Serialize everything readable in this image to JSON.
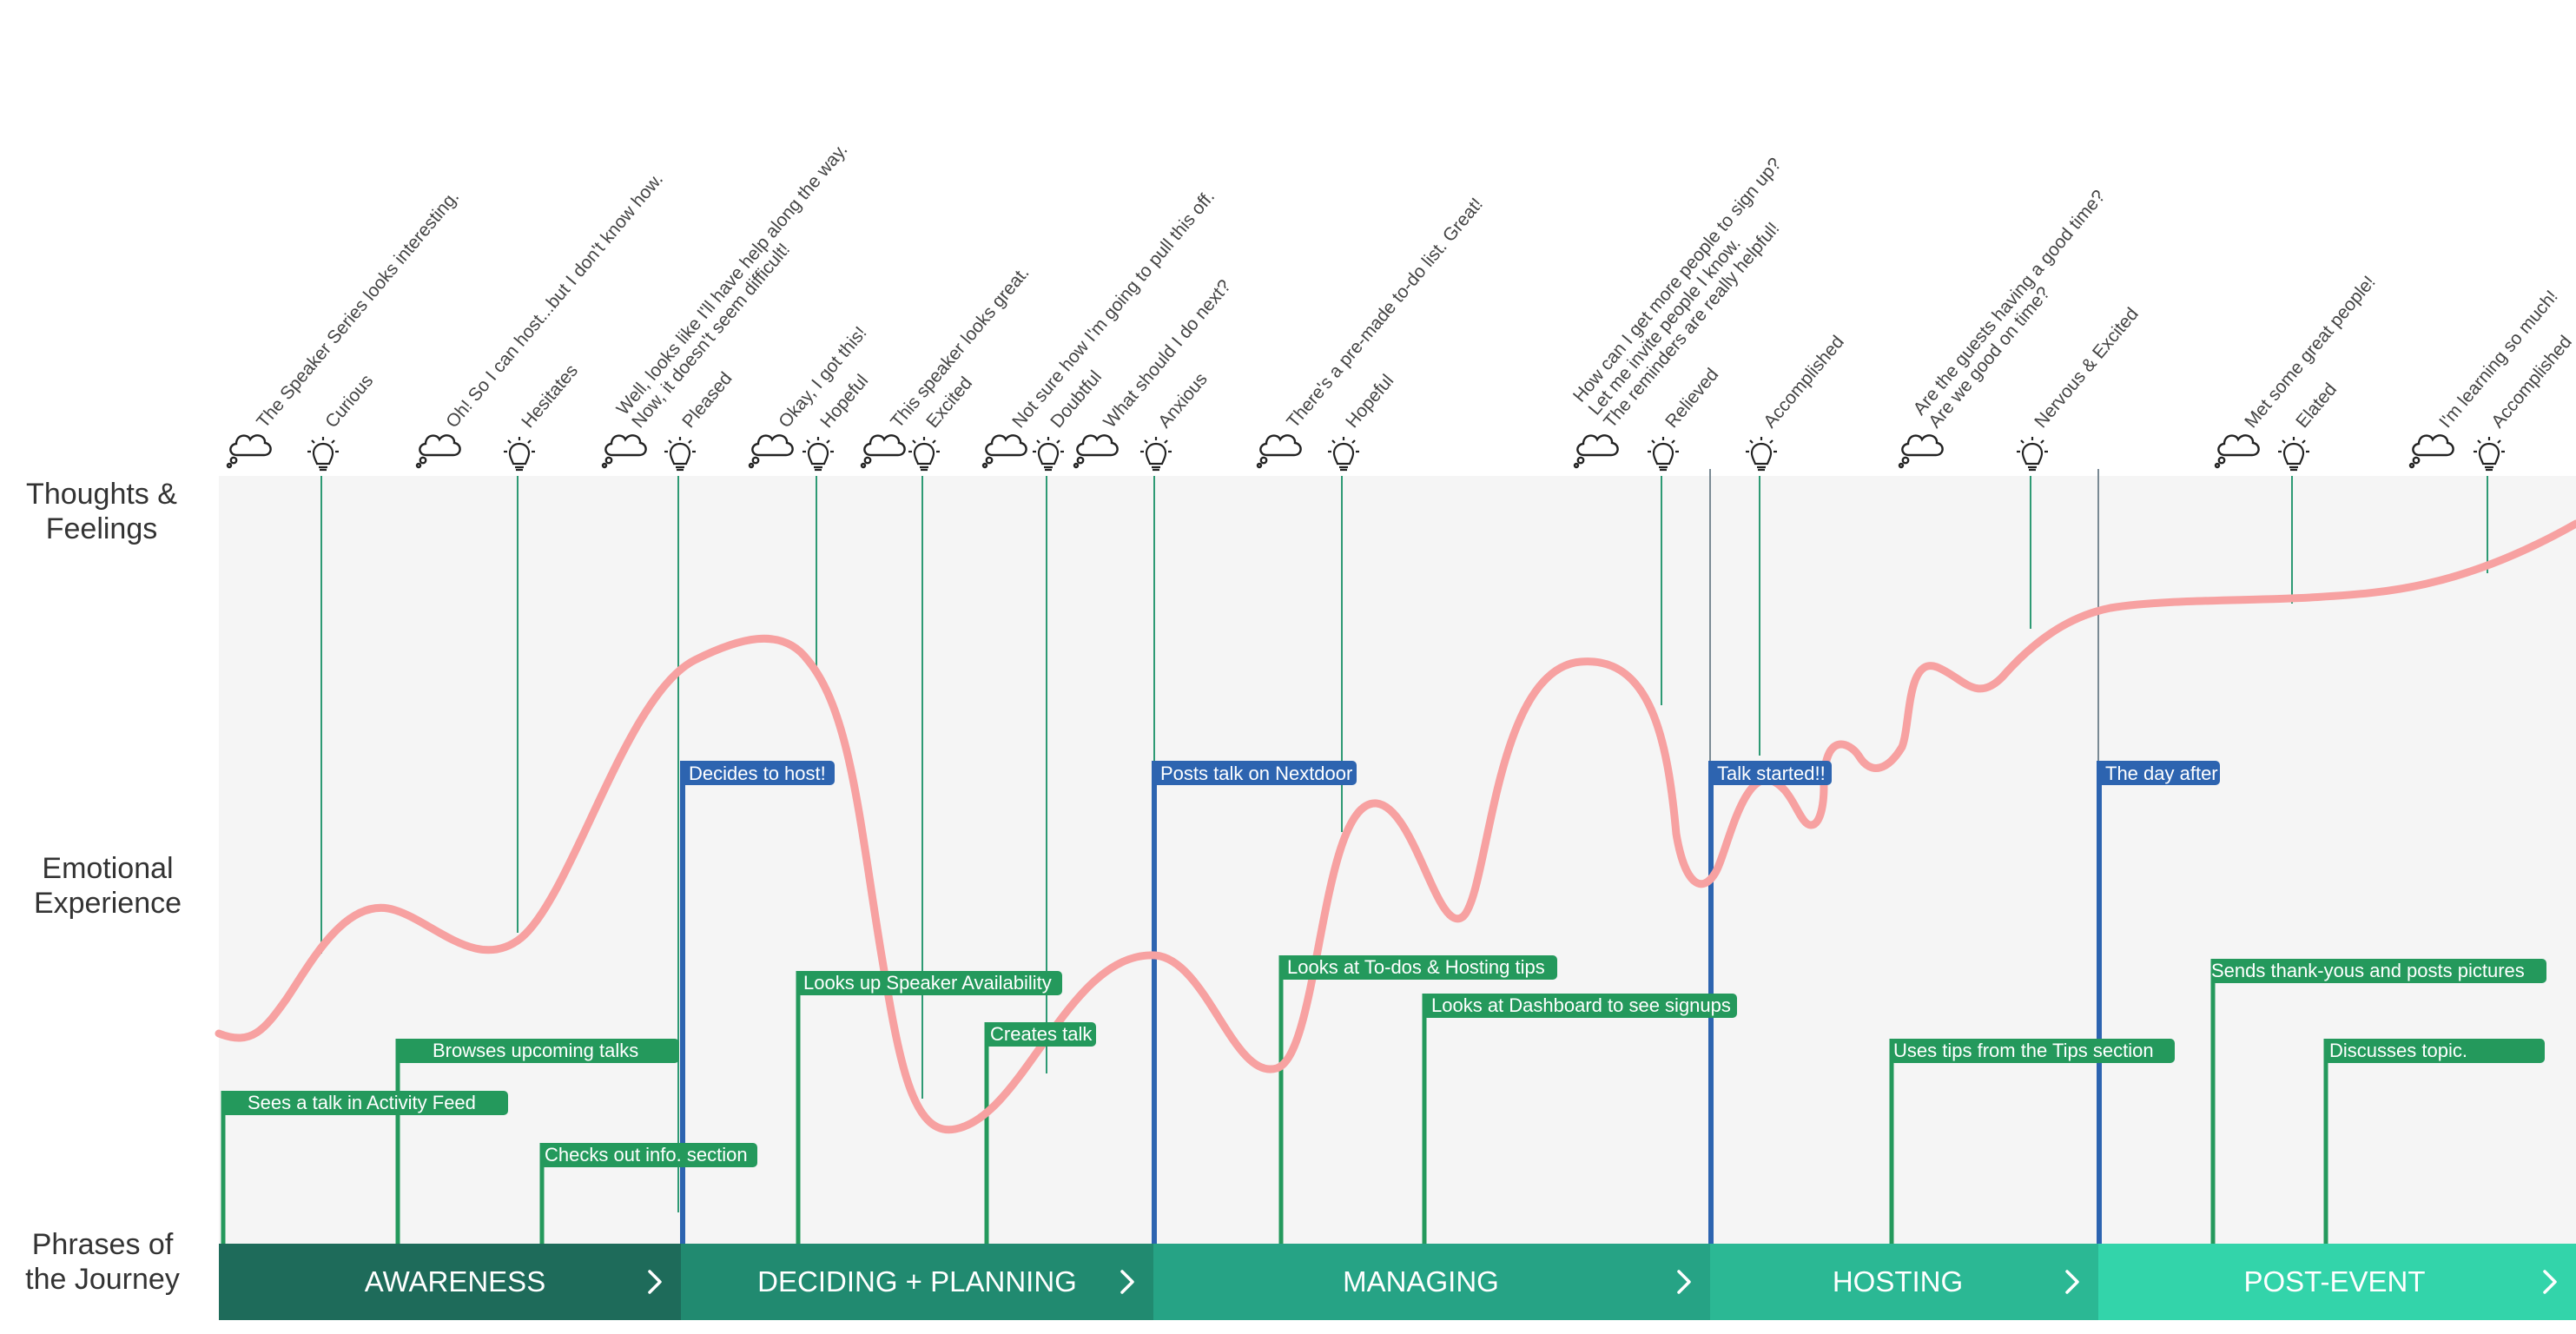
{
  "rows": {
    "thoughts_line1": "Thoughts &",
    "thoughts_line2": "Feelings",
    "emotion_line1": "Emotional",
    "emotion_line2": "Experience",
    "phrases_line1": "Phrases of",
    "phrases_line2": "the Journey"
  },
  "thoughts": [
    {
      "lines": [
        "The Speaker Series looks interesting."
      ]
    },
    {
      "lines": [
        "Oh! So I can host...but I don't know how."
      ]
    },
    {
      "lines": [
        "Well, looks like I'll have help along the way.",
        "Now, it doesn't seem difficult!"
      ]
    },
    {
      "lines": [
        "Okay, I got this!"
      ]
    },
    {
      "lines": [
        "This speaker looks great."
      ]
    },
    {
      "lines": [
        "Not sure how I'm going to pull this off."
      ]
    },
    {
      "lines": [
        "What should I do next?"
      ]
    },
    {
      "lines": [
        "There's a pre-made to-do list. Great!"
      ]
    },
    {
      "lines": [
        "How can I get more people to sign up?",
        "Let me invite people I know.",
        "The reminders are really helpful!"
      ]
    },
    {
      "lines": [
        "Are the guests having a good time?",
        "Are we good on time?"
      ]
    },
    {
      "lines": [
        "Met some great people!"
      ]
    },
    {
      "lines": [
        "I'm learning so much!"
      ]
    }
  ],
  "feelings": [
    {
      "label": "Curious"
    },
    {
      "label": "Hesitates"
    },
    {
      "label": "Pleased"
    },
    {
      "label": "Hopeful"
    },
    {
      "label": "Excited"
    },
    {
      "label": "Doubtful"
    },
    {
      "label": "Anxious"
    },
    {
      "label": "Hopeful"
    },
    {
      "label": "Relieved"
    },
    {
      "label": "Accomplished"
    },
    {
      "label": "Nervous & Excited"
    },
    {
      "label": "Elated"
    },
    {
      "label": "Accomplished"
    }
  ],
  "milestones": [
    {
      "label": "Decides to host!"
    },
    {
      "label": "Posts talk on Nextdoor"
    },
    {
      "label": "Talk started!!"
    },
    {
      "label": "The day after"
    }
  ],
  "actions": [
    {
      "label": "Sees a talk in Activity Feed"
    },
    {
      "label": "Browses upcoming talks"
    },
    {
      "label": "Checks out info. section"
    },
    {
      "label": "Looks up Speaker Availability"
    },
    {
      "label": "Creates talk"
    },
    {
      "label": "Looks at To-dos & Hosting tips"
    },
    {
      "label": "Looks at Dashboard to see signups"
    },
    {
      "label": "Uses tips from the Tips section"
    },
    {
      "label": "Sends thank-yous and posts pictures"
    },
    {
      "label": "Discusses topic."
    }
  ],
  "phases": [
    {
      "label": "AWARENESS",
      "color": "#1e6b5a"
    },
    {
      "label": "DECIDING + PLANNING",
      "color": "#218a70"
    },
    {
      "label": "MANAGING",
      "color": "#26a385"
    },
    {
      "label": "HOSTING",
      "color": "#2bb894"
    },
    {
      "label": "POST-EVENT",
      "color": "#33d4aa"
    }
  ],
  "colors": {
    "curve": "#f7a1a1",
    "action": "#24995c",
    "milestone": "#2d64b0",
    "connector": "#2e9a74",
    "background_band": "#f5f5f5"
  }
}
